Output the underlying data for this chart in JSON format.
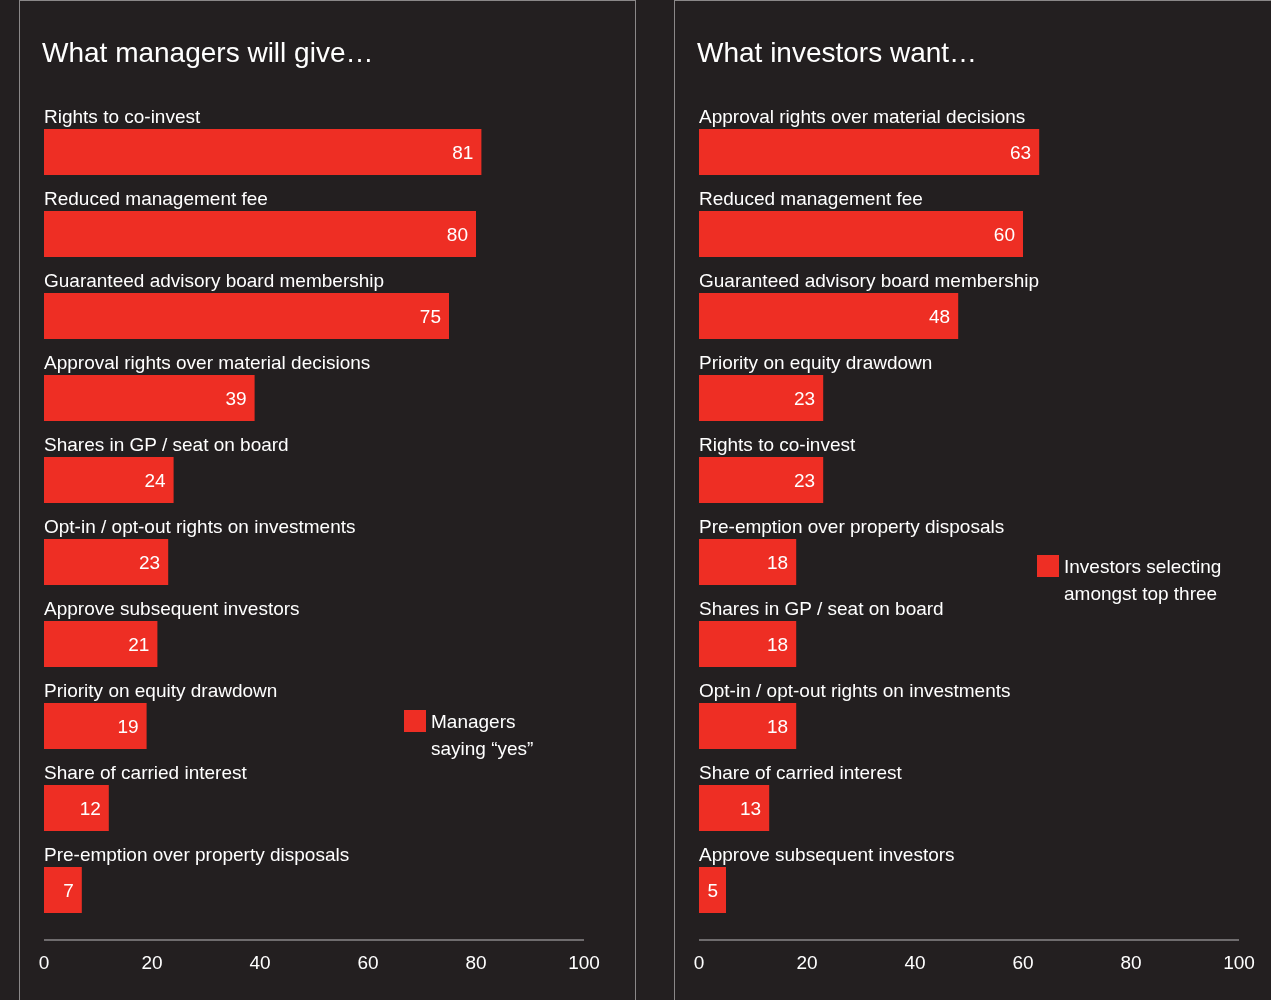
{
  "chart_data": [
    {
      "type": "bar",
      "orientation": "horizontal",
      "title": "What managers will give…",
      "categories": [
        "Rights to co-invest",
        "Reduced management fee",
        "Guaranteed advisory board membership",
        "Approval rights over material decisions",
        "Shares in GP / seat on board",
        "Opt-in / opt-out rights on investments",
        "Approve subsequent investors",
        "Priority on equity drawdown",
        "Share of carried interest",
        "Pre-emption over property disposals"
      ],
      "series": [
        {
          "name": "Managers saying “yes”",
          "color": "#ee2e24",
          "values": [
            81,
            80,
            75,
            39,
            24,
            23,
            21,
            19,
            12,
            7
          ]
        }
      ],
      "xlim": [
        0,
        100
      ],
      "xticks": [
        0,
        20,
        40,
        60,
        80,
        100
      ],
      "data_labels": true,
      "grid": false,
      "legend": "bottom right"
    },
    {
      "type": "bar",
      "orientation": "horizontal",
      "title": "What investors want…",
      "categories": [
        "Approval rights over material decisions",
        "Reduced management fee",
        "Guaranteed advisory board membership",
        "Priority on equity drawdown",
        "Rights to co-invest",
        "Pre-emption over property disposals",
        "Shares in GP / seat on board",
        "Opt-in / opt-out rights on investments",
        "Share of carried interest",
        "Approve subsequent investors"
      ],
      "series": [
        {
          "name": "Investors selecting amongst top three",
          "color": "#ee2e24",
          "values": [
            63,
            60,
            48,
            23,
            23,
            18,
            18,
            18,
            13,
            5
          ]
        }
      ],
      "xlim": [
        0,
        100
      ],
      "xticks": [
        0,
        20,
        40,
        60,
        80,
        100
      ],
      "data_labels": true,
      "grid": false,
      "legend": "right"
    }
  ]
}
